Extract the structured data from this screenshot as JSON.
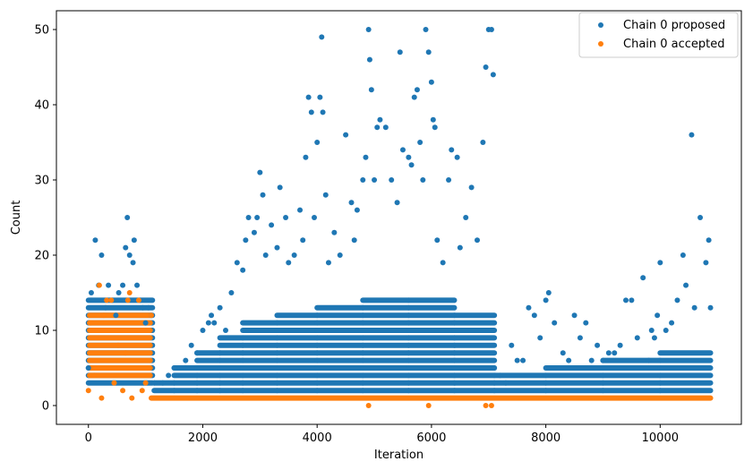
{
  "chart_data": {
    "type": "scatter",
    "xlabel": "Iteration",
    "ylabel": "Count",
    "xlim": [
      -560,
      11420
    ],
    "ylim": [
      -2.5,
      52.5
    ],
    "xticks": [
      0,
      2000,
      4000,
      6000,
      8000,
      10000
    ],
    "yticks": [
      0,
      10,
      20,
      30,
      40,
      50
    ],
    "grid": false,
    "legend_position": "top-right",
    "series": [
      {
        "name": "Chain 0 proposed",
        "color": "#1f77b4",
        "points": [
          [
            0,
            5
          ],
          [
            50,
            15
          ],
          [
            120,
            22
          ],
          [
            180,
            16
          ],
          [
            230,
            20
          ],
          [
            300,
            13
          ],
          [
            350,
            16
          ],
          [
            420,
            14
          ],
          [
            480,
            12
          ],
          [
            530,
            15
          ],
          [
            600,
            16
          ],
          [
            650,
            21
          ],
          [
            680,
            25
          ],
          [
            720,
            20
          ],
          [
            780,
            19
          ],
          [
            800,
            22
          ],
          [
            850,
            16
          ],
          [
            900,
            14
          ],
          [
            950,
            13
          ],
          [
            1000,
            11
          ],
          [
            1050,
            13
          ],
          [
            1100,
            12
          ],
          [
            1150,
            3
          ],
          [
            1300,
            3
          ],
          [
            1400,
            4
          ],
          [
            1500,
            5
          ],
          [
            1600,
            5
          ],
          [
            1700,
            6
          ],
          [
            1800,
            8
          ],
          [
            1900,
            7
          ],
          [
            2000,
            10
          ],
          [
            2100,
            11
          ],
          [
            2150,
            12
          ],
          [
            2200,
            11
          ],
          [
            2300,
            13
          ],
          [
            2400,
            10
          ],
          [
            2500,
            15
          ],
          [
            2600,
            19
          ],
          [
            2700,
            18
          ],
          [
            2750,
            22
          ],
          [
            2800,
            25
          ],
          [
            2900,
            23
          ],
          [
            2950,
            25
          ],
          [
            3000,
            31
          ],
          [
            3050,
            28
          ],
          [
            3100,
            20
          ],
          [
            3200,
            24
          ],
          [
            3300,
            21
          ],
          [
            3350,
            29
          ],
          [
            3450,
            25
          ],
          [
            3500,
            19
          ],
          [
            3600,
            20
          ],
          [
            3700,
            26
          ],
          [
            3750,
            22
          ],
          [
            3800,
            33
          ],
          [
            3850,
            41
          ],
          [
            3900,
            39
          ],
          [
            3950,
            25
          ],
          [
            4000,
            35
          ],
          [
            4050,
            41
          ],
          [
            4080,
            49
          ],
          [
            4100,
            39
          ],
          [
            4150,
            28
          ],
          [
            4200,
            19
          ],
          [
            4300,
            23
          ],
          [
            4400,
            20
          ],
          [
            4500,
            36
          ],
          [
            4600,
            27
          ],
          [
            4650,
            22
          ],
          [
            4700,
            26
          ],
          [
            4800,
            30
          ],
          [
            4850,
            33
          ],
          [
            4900,
            50
          ],
          [
            4920,
            46
          ],
          [
            4950,
            42
          ],
          [
            5000,
            30
          ],
          [
            5050,
            37
          ],
          [
            5100,
            38
          ],
          [
            5200,
            37
          ],
          [
            5300,
            30
          ],
          [
            5400,
            27
          ],
          [
            5450,
            47
          ],
          [
            5500,
            34
          ],
          [
            5600,
            33
          ],
          [
            5650,
            32
          ],
          [
            5700,
            41
          ],
          [
            5750,
            42
          ],
          [
            5800,
            35
          ],
          [
            5850,
            30
          ],
          [
            5900,
            50
          ],
          [
            5950,
            47
          ],
          [
            6000,
            43
          ],
          [
            6030,
            38
          ],
          [
            6060,
            37
          ],
          [
            6100,
            22
          ],
          [
            6200,
            19
          ],
          [
            6300,
            30
          ],
          [
            6350,
            34
          ],
          [
            6450,
            33
          ],
          [
            6500,
            21
          ],
          [
            6600,
            25
          ],
          [
            6700,
            29
          ],
          [
            6800,
            22
          ],
          [
            6900,
            35
          ],
          [
            6950,
            45
          ],
          [
            7000,
            50
          ],
          [
            7050,
            50
          ],
          [
            7080,
            44
          ],
          [
            7100,
            5
          ],
          [
            7200,
            4
          ],
          [
            7300,
            3
          ],
          [
            7400,
            8
          ],
          [
            7500,
            6
          ],
          [
            7600,
            6
          ],
          [
            7700,
            13
          ],
          [
            7800,
            12
          ],
          [
            7900,
            9
          ],
          [
            8000,
            14
          ],
          [
            8050,
            15
          ],
          [
            8150,
            11
          ],
          [
            8300,
            7
          ],
          [
            8400,
            6
          ],
          [
            8500,
            12
          ],
          [
            8600,
            9
          ],
          [
            8700,
            11
          ],
          [
            8800,
            6
          ],
          [
            8900,
            8
          ],
          [
            9000,
            6
          ],
          [
            9100,
            7
          ],
          [
            9200,
            7
          ],
          [
            9300,
            8
          ],
          [
            9400,
            14
          ],
          [
            9500,
            14
          ],
          [
            9600,
            9
          ],
          [
            9700,
            17
          ],
          [
            9800,
            6
          ],
          [
            9850,
            10
          ],
          [
            9900,
            9
          ],
          [
            9950,
            12
          ],
          [
            10000,
            19
          ],
          [
            10100,
            10
          ],
          [
            10200,
            11
          ],
          [
            10300,
            14
          ],
          [
            10400,
            20
          ],
          [
            10450,
            16
          ],
          [
            10550,
            36
          ],
          [
            10600,
            13
          ],
          [
            10700,
            25
          ],
          [
            10800,
            19
          ],
          [
            10850,
            22
          ],
          [
            10880,
            13
          ]
        ]
      },
      {
        "name": "Chain 0 accepted",
        "color": "#ff7f0e",
        "points": [
          [
            0,
            2
          ],
          [
            40,
            11
          ],
          [
            100,
            4
          ],
          [
            150,
            10
          ],
          [
            190,
            16
          ],
          [
            230,
            1
          ],
          [
            270,
            12
          ],
          [
            320,
            14
          ],
          [
            400,
            14
          ],
          [
            450,
            3
          ],
          [
            520,
            8
          ],
          [
            600,
            2
          ],
          [
            650,
            7
          ],
          [
            690,
            14
          ],
          [
            720,
            15
          ],
          [
            760,
            1
          ],
          [
            800,
            10
          ],
          [
            880,
            14
          ],
          [
            940,
            2
          ],
          [
            1000,
            3
          ],
          [
            1050,
            5
          ],
          [
            1100,
            12
          ],
          [
            4900,
            0
          ],
          [
            5950,
            0
          ],
          [
            6950,
            0
          ],
          [
            7050,
            0
          ]
        ]
      }
    ]
  }
}
